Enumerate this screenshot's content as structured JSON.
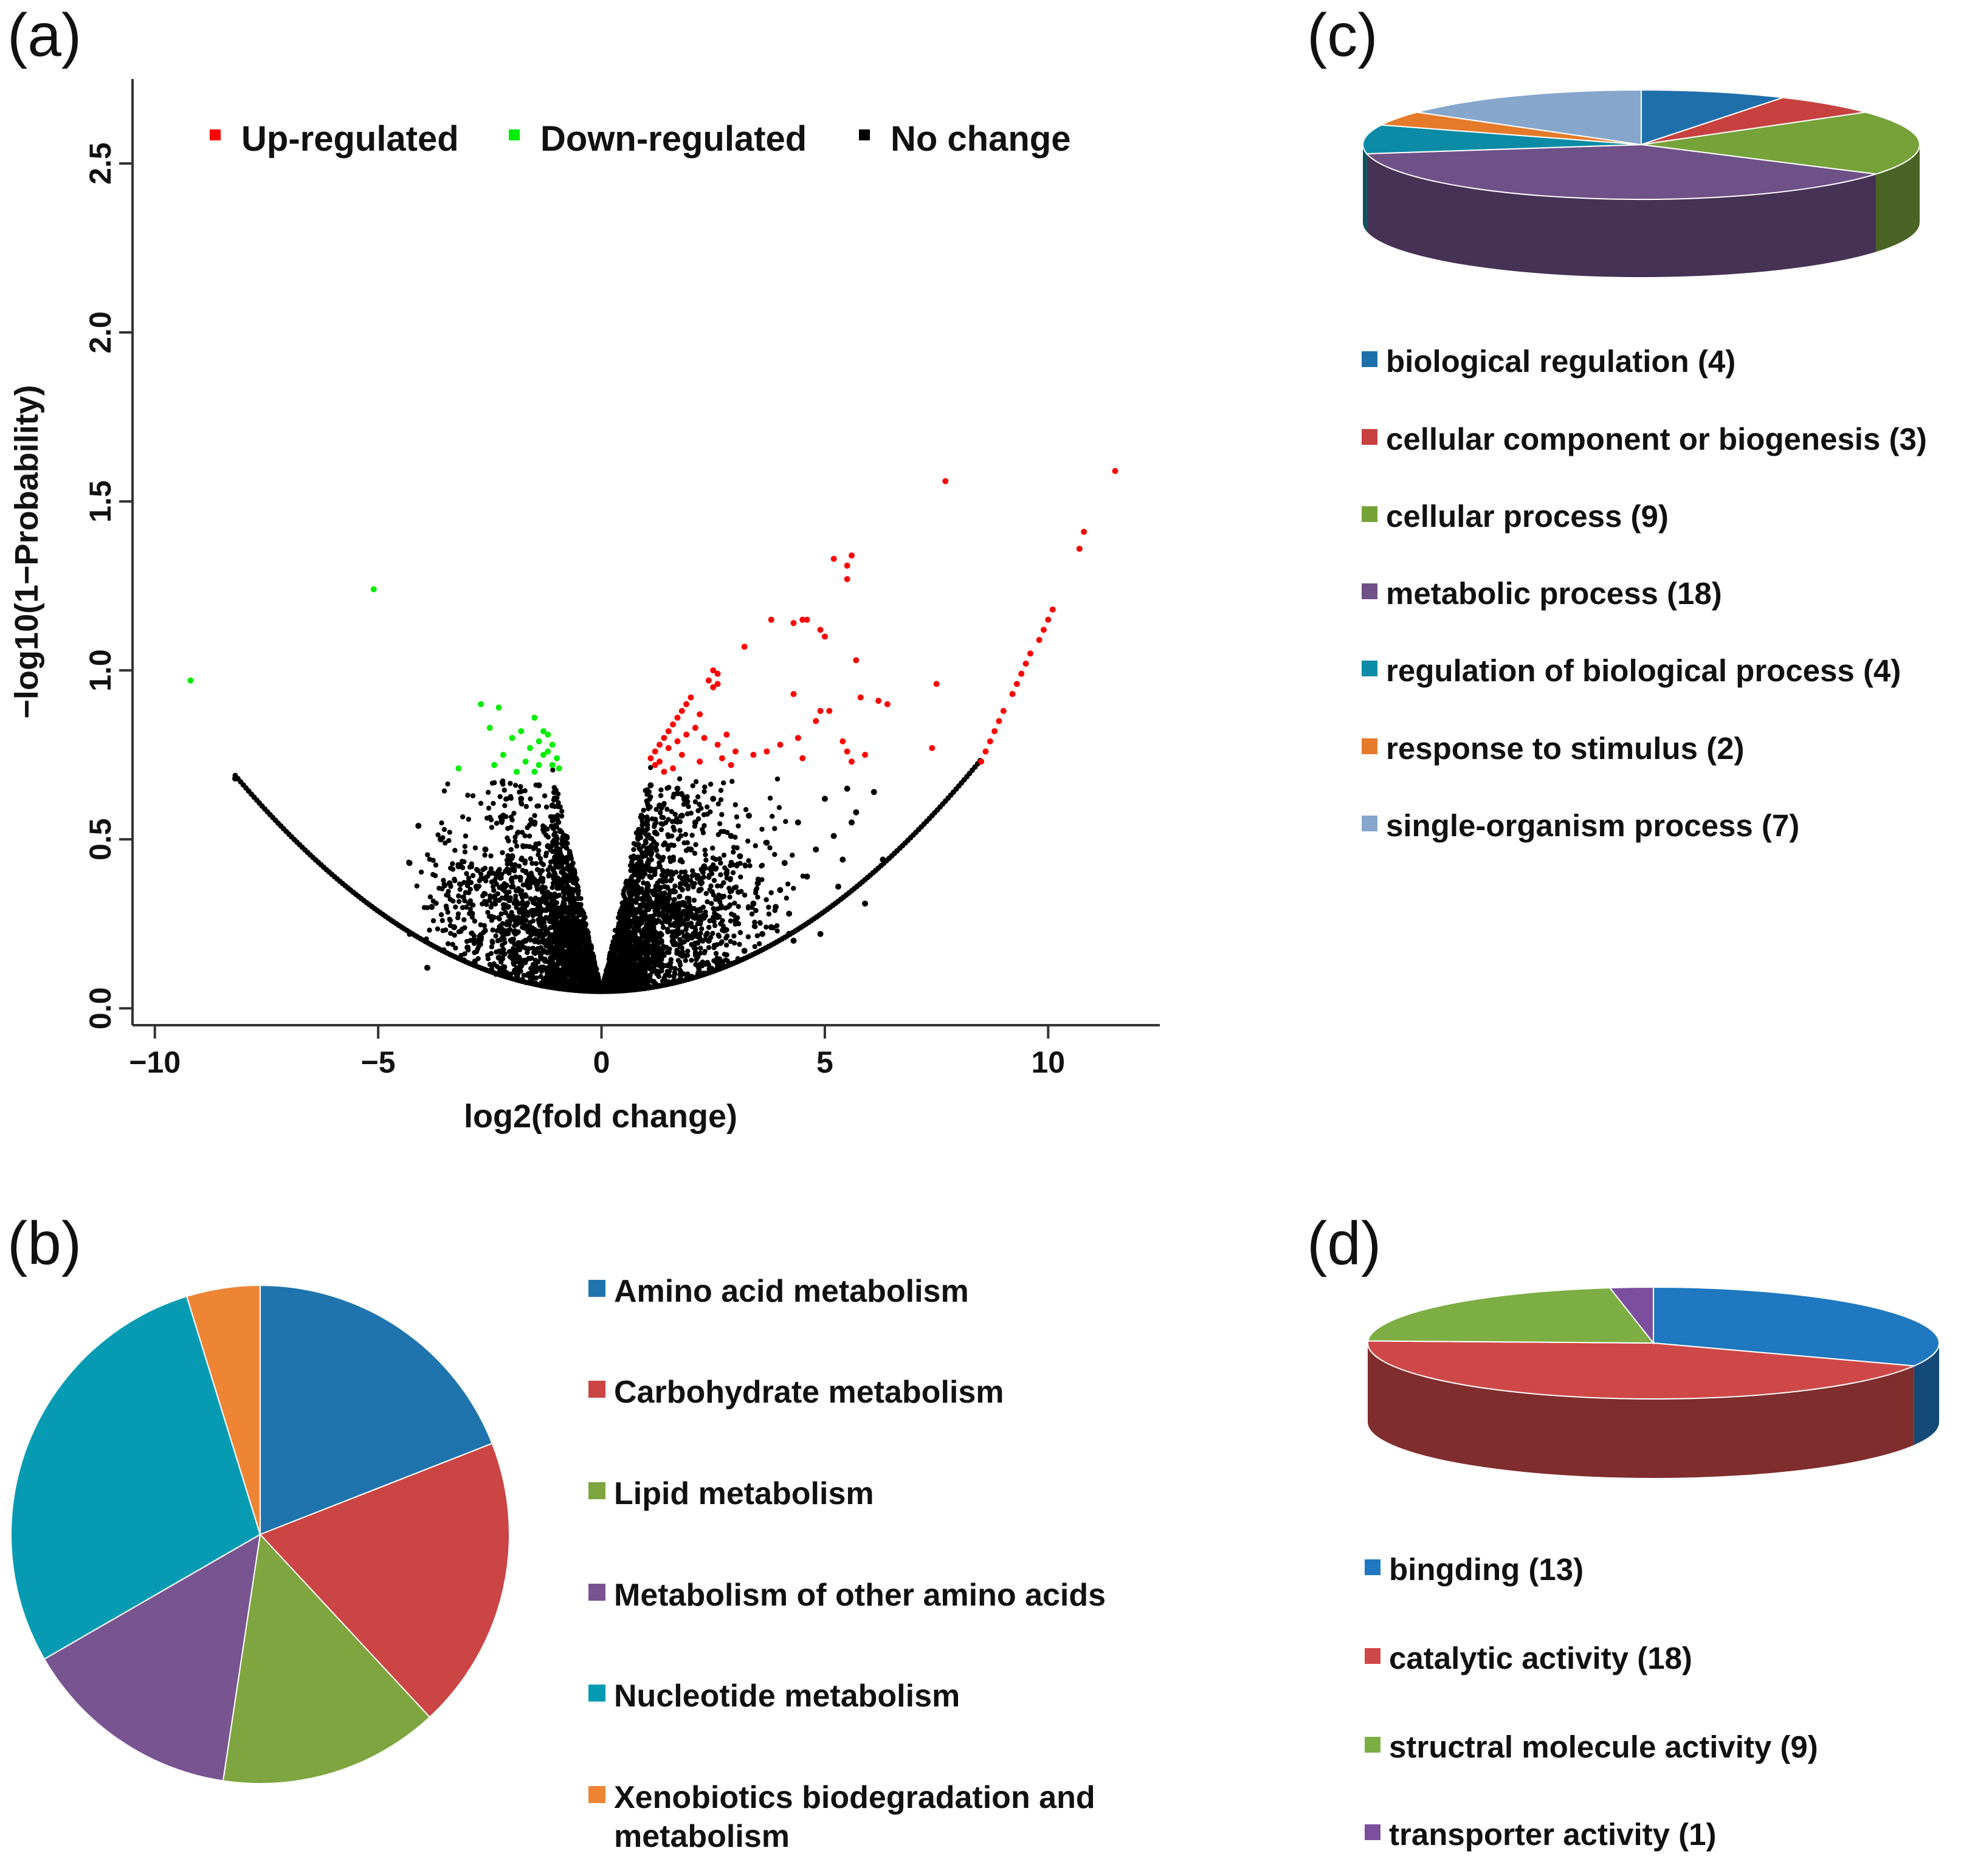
{
  "panels": {
    "a": {
      "label": "(a)"
    },
    "b": {
      "label": "(b)"
    },
    "c": {
      "label": "(c)"
    },
    "d": {
      "label": "(d)"
    }
  },
  "chart_data": [
    {
      "id": "a",
      "type": "scatter",
      "title": "",
      "xlabel": "log2(fold change)",
      "ylabel": "−log10(1−Probability)",
      "xlim": [
        -10.5,
        12.5
      ],
      "ylim": [
        -0.05,
        2.75
      ],
      "xticks": [
        -10,
        -5,
        0,
        5,
        10
      ],
      "xtick_labels": [
        "−10",
        "−5",
        "0",
        "5",
        "10"
      ],
      "yticks": [
        0.0,
        0.5,
        1.0,
        1.5,
        2.0,
        2.5
      ],
      "ytick_labels": [
        "0.0",
        "0.5",
        "1.0",
        "1.5",
        "2.0",
        "2.5"
      ],
      "legend": {
        "placement": "top",
        "entries": [
          {
            "label": "Up-regulated",
            "color": "#ff0000"
          },
          {
            "label": "Down-regulated",
            "color": "#00ee00"
          },
          {
            "label": "No change",
            "color": "#000000"
          }
        ]
      },
      "series": [
        {
          "name": "Up-regulated",
          "color": "#ff0000",
          "points": [
            [
              11.5,
              1.59
            ],
            [
              7.7,
              1.56
            ],
            [
              10.8,
              1.41
            ],
            [
              10.7,
              1.36
            ],
            [
              5.2,
              1.33
            ],
            [
              5.6,
              1.34
            ],
            [
              5.5,
              1.31
            ],
            [
              5.5,
              1.27
            ],
            [
              3.8,
              1.15
            ],
            [
              4.3,
              1.14
            ],
            [
              4.5,
              1.15
            ],
            [
              4.6,
              1.15
            ],
            [
              4.9,
              1.12
            ],
            [
              5.0,
              1.1
            ],
            [
              3.2,
              1.07
            ],
            [
              5.7,
              1.03
            ],
            [
              2.5,
              1.0
            ],
            [
              2.6,
              0.99
            ],
            [
              2.4,
              0.97
            ],
            [
              2.5,
              0.95
            ],
            [
              2.6,
              0.96
            ],
            [
              7.5,
              0.96
            ],
            [
              5.8,
              0.92
            ],
            [
              6.2,
              0.91
            ],
            [
              6.4,
              0.9
            ],
            [
              4.3,
              0.93
            ],
            [
              4.9,
              0.88
            ],
            [
              5.1,
              0.88
            ],
            [
              4.8,
              0.85
            ],
            [
              2.0,
              0.92
            ],
            [
              1.9,
              0.9
            ],
            [
              1.8,
              0.88
            ],
            [
              2.2,
              0.87
            ],
            [
              1.7,
              0.86
            ],
            [
              1.6,
              0.84
            ],
            [
              1.5,
              0.82
            ],
            [
              1.4,
              0.8
            ],
            [
              1.3,
              0.78
            ],
            [
              1.2,
              0.76
            ],
            [
              1.1,
              0.74
            ],
            [
              1.2,
              0.72
            ],
            [
              1.3,
              0.73
            ],
            [
              1.5,
              0.77
            ],
            [
              1.7,
              0.79
            ],
            [
              1.9,
              0.81
            ],
            [
              2.1,
              0.83
            ],
            [
              2.3,
              0.8
            ],
            [
              2.6,
              0.78
            ],
            [
              2.8,
              0.81
            ],
            [
              3.0,
              0.76
            ],
            [
              3.4,
              0.75
            ],
            [
              3.7,
              0.76
            ],
            [
              4.0,
              0.78
            ],
            [
              4.4,
              0.8
            ],
            [
              4.5,
              0.74
            ],
            [
              5.4,
              0.79
            ],
            [
              5.5,
              0.76
            ],
            [
              5.6,
              0.73
            ],
            [
              5.9,
              0.75
            ],
            [
              7.4,
              0.77
            ],
            [
              2.7,
              0.74
            ],
            [
              2.9,
              0.72
            ],
            [
              1.6,
              0.71
            ],
            [
              1.4,
              0.7
            ],
            [
              1.8,
              0.75
            ],
            [
              2.2,
              0.73
            ],
            [
              8.8,
              0.82
            ],
            [
              8.9,
              0.85
            ],
            [
              9.0,
              0.88
            ],
            [
              9.2,
              0.93
            ],
            [
              9.3,
              0.96
            ],
            [
              9.4,
              0.99
            ],
            [
              9.5,
              1.02
            ],
            [
              9.6,
              1.05
            ],
            [
              9.8,
              1.09
            ],
            [
              9.9,
              1.12
            ],
            [
              10.0,
              1.15
            ],
            [
              10.1,
              1.18
            ],
            [
              8.6,
              0.76
            ],
            [
              8.5,
              0.73
            ],
            [
              8.7,
              0.79
            ]
          ]
        },
        {
          "name": "Down-regulated",
          "color": "#00ee00",
          "points": [
            [
              -5.1,
              1.24
            ],
            [
              -9.2,
              0.97
            ],
            [
              -2.7,
              0.9
            ],
            [
              -2.3,
              0.89
            ],
            [
              -1.5,
              0.86
            ],
            [
              -2.5,
              0.83
            ],
            [
              -2.0,
              0.8
            ],
            [
              -1.8,
              0.82
            ],
            [
              -1.3,
              0.82
            ],
            [
              -1.2,
              0.81
            ],
            [
              -1.4,
              0.79
            ],
            [
              -1.1,
              0.78
            ],
            [
              -1.2,
              0.76
            ],
            [
              -1.3,
              0.75
            ],
            [
              -1.6,
              0.77
            ],
            [
              -1.0,
              0.74
            ],
            [
              -1.1,
              0.72
            ],
            [
              -1.4,
              0.72
            ],
            [
              -1.7,
              0.73
            ],
            [
              -2.2,
              0.75
            ],
            [
              -2.4,
              0.72
            ],
            [
              -3.2,
              0.71
            ],
            [
              -1.9,
              0.7
            ],
            [
              -1.5,
              0.7
            ],
            [
              -0.95,
              0.71
            ]
          ]
        },
        {
          "name": "No change",
          "color": "#000000",
          "points": [
            [
              -8.2,
              0.68
            ],
            [
              -4.1,
              0.54
            ],
            [
              -4.3,
              0.43
            ],
            [
              -3.6,
              0.5
            ],
            [
              -3.4,
              0.37
            ],
            [
              -3.8,
              0.3
            ],
            [
              -3.2,
              0.42
            ],
            [
              -2.9,
              0.28
            ],
            [
              -2.6,
              0.47
            ],
            [
              -2.4,
              0.33
            ],
            [
              -2.2,
              0.57
            ],
            [
              -2.0,
              0.45
            ],
            [
              -1.8,
              0.62
            ],
            [
              -1.6,
              0.38
            ],
            [
              -1.5,
              0.55
            ],
            [
              -2.7,
              0.21
            ],
            [
              -3.0,
              0.18
            ],
            [
              -2.3,
              0.15
            ],
            [
              -1.9,
              0.25
            ],
            [
              -1.4,
              0.66
            ],
            [
              -1.2,
              0.48
            ],
            [
              -3.9,
              0.12
            ],
            [
              -2.8,
              0.36
            ],
            [
              -3.3,
              0.24
            ],
            [
              -2.1,
              0.3
            ],
            [
              -1.7,
              0.2
            ],
            [
              -1.3,
              0.32
            ],
            [
              -2.5,
              0.4
            ],
            [
              -1.1,
              0.6
            ],
            [
              -0.9,
              0.45
            ],
            [
              1.3,
              0.6
            ],
            [
              1.5,
              0.48
            ],
            [
              1.7,
              0.65
            ],
            [
              1.9,
              0.38
            ],
            [
              2.1,
              0.55
            ],
            [
              2.3,
              0.42
            ],
            [
              2.5,
              0.62
            ],
            [
              2.7,
              0.33
            ],
            [
              2.9,
              0.51
            ],
            [
              3.1,
              0.45
            ],
            [
              3.3,
              0.57
            ],
            [
              3.5,
              0.37
            ],
            [
              3.7,
              0.49
            ],
            [
              3.9,
              0.3
            ],
            [
              4.1,
              0.43
            ],
            [
              4.4,
              0.55
            ],
            [
              4.6,
              0.39
            ],
            [
              4.8,
              0.47
            ],
            [
              5.0,
              0.62
            ],
            [
              5.2,
              0.51
            ],
            [
              5.4,
              0.44
            ],
            [
              5.5,
              0.65
            ],
            [
              5.7,
              0.58
            ],
            [
              5.9,
              0.31
            ],
            [
              6.1,
              0.64
            ],
            [
              6.3,
              0.44
            ],
            [
              4.2,
              0.28
            ],
            [
              3.6,
              0.22
            ],
            [
              3.0,
              0.26
            ],
            [
              2.4,
              0.2
            ],
            [
              2.0,
              0.28
            ],
            [
              1.6,
              0.3
            ],
            [
              1.4,
              0.18
            ],
            [
              2.6,
              0.14
            ],
            [
              3.2,
              0.17
            ],
            [
              3.8,
              0.24
            ],
            [
              4.0,
              0.35
            ],
            [
              4.3,
              0.2
            ],
            [
              4.9,
              0.22
            ],
            [
              1.2,
              0.52
            ],
            [
              1.8,
              0.57
            ],
            [
              2.2,
              0.35
            ],
            [
              2.8,
              0.4
            ],
            [
              3.4,
              0.31
            ],
            [
              5.3,
              0.36
            ],
            [
              5.6,
              0.55
            ],
            [
              1.1,
              0.66
            ],
            [
              1.3,
              0.42
            ],
            [
              2.0,
              0.47
            ],
            [
              2.6,
              0.27
            ]
          ]
        }
      ]
    },
    {
      "id": "b",
      "type": "pie",
      "title": "",
      "categories": [
        "Amino acid metabolism",
        "Carbohydrate metabolism",
        "Lipid metabolism",
        "Metabolism of other amino acids",
        "Nucleotide metabolism",
        "Xenobiotics biodegradation and metabolism"
      ],
      "legend_lines": [
        [
          "Amino acid metabolism"
        ],
        [
          "Carbohydrate metabolism"
        ],
        [
          "Lipid metabolism"
        ],
        [
          "Metabolism of other amino acids"
        ],
        [
          "Nucleotide metabolism"
        ],
        [
          "Xenobiotics biodegradation and",
          "metabolism"
        ]
      ],
      "values": [
        4,
        4,
        3,
        3,
        6,
        1
      ],
      "colors": [
        "#1f74ae",
        "#ca4544",
        "#7ea53f",
        "#785490",
        "#079bb3",
        "#ed8535"
      ],
      "legend": {
        "placement": "right"
      }
    },
    {
      "id": "c",
      "type": "pie",
      "style": "3d",
      "title": "",
      "categories": [
        "biological regulation (4)",
        "cellular component or biogenesis (3)",
        "cellular process (9)",
        "metabolic process (18)",
        "regulation of biological process (4)",
        "response to stimulus (2)",
        "single-organism process (7)"
      ],
      "values": [
        4,
        3,
        9,
        18,
        4,
        2,
        7
      ],
      "colors": [
        "#1f6fab",
        "#c6413f",
        "#76a23a",
        "#6f5087",
        "#0b8ba5",
        "#e57a2a",
        "#86a6cc"
      ],
      "legend": {
        "placement": "bottom"
      }
    },
    {
      "id": "d",
      "type": "pie",
      "style": "3d",
      "title": "",
      "categories": [
        "bingding (13)",
        "catalytic activity (18)",
        "structral molecule activity (9)",
        "transporter activity (1)"
      ],
      "values": [
        13,
        18,
        9,
        1
      ],
      "colors": [
        "#1f78c0",
        "#cf4848",
        "#7cae43",
        "#7b4f9e"
      ],
      "legend": {
        "placement": "bottom"
      }
    }
  ]
}
